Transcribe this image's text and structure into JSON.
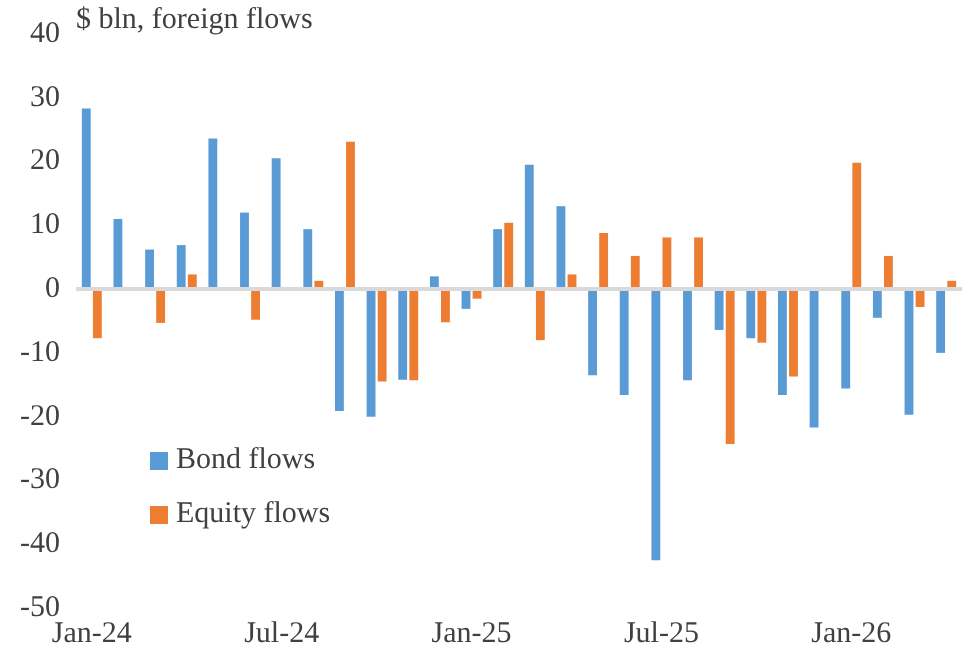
{
  "chart_data": {
    "type": "bar",
    "title": "$ bln, foreign flows",
    "categories": [
      "Jan-24",
      null,
      null,
      null,
      null,
      null,
      "Jul-24",
      null,
      null,
      null,
      null,
      null,
      "Jan-25",
      null,
      null,
      null,
      null,
      null,
      "Jul-25",
      null,
      null,
      null,
      null,
      null,
      "Jan-26",
      null,
      null,
      null
    ],
    "series": [
      {
        "name": "Bond flows",
        "color": "#5b9bd5",
        "values": [
          28.3,
          11,
          6.2,
          6.9,
          23.6,
          12,
          20.5,
          9.4,
          -19.1,
          -20,
          -14.2,
          2,
          -3.1,
          9.4,
          19.5,
          13,
          -13.5,
          -16.6,
          -42.5,
          -14.3,
          -6.4,
          -7.7,
          -16.6,
          -21.7,
          -15.6,
          -4.5,
          -19.7,
          -10
        ]
      },
      {
        "name": "Equity flows",
        "color": "#ed7d31",
        "values": [
          -7.7,
          0,
          -5.3,
          2.3,
          0,
          -4.8,
          0,
          1.3,
          23.1,
          -14.5,
          -14.3,
          -5.2,
          -1.5,
          10.4,
          -8,
          2.3,
          8.8,
          5.2,
          8.1,
          8.1,
          -24.3,
          -8.4,
          -13.7,
          0,
          19.8,
          5.2,
          -2.8,
          1.3
        ]
      }
    ],
    "ylim": [
      -50,
      40
    ],
    "yticks": [
      -50,
      -40,
      -30,
      -20,
      -10,
      0,
      10,
      20,
      30,
      40
    ],
    "legend": "bottom left",
    "ref_lines": [
      {
        "axis": "y",
        "value": 0,
        "color": "#d9d9d9"
      }
    ]
  }
}
